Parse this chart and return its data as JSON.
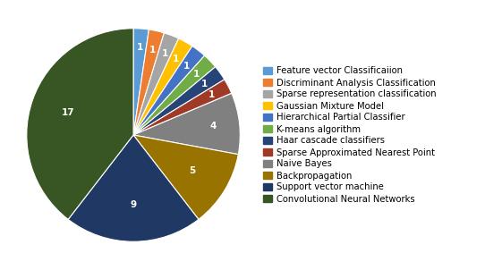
{
  "labels": [
    "Feature vector Classificaiion",
    "Discriminant Analysis Classification",
    "Sparse representation classification",
    "Gaussian Mixture Model",
    "Hierarchical Partial Classifier",
    "K-means algorithm",
    "Haar cascade classifiers",
    "Sparse Approximated Nearest Point",
    "Naive Bayes",
    "Backpropagation",
    "Support vector machine",
    "Convolutional Neural Networks"
  ],
  "values": [
    1,
    1,
    1,
    1,
    1,
    1,
    1,
    1,
    4,
    5,
    9,
    17
  ],
  "colors": [
    "#5B9BD5",
    "#ED7D31",
    "#A5A5A5",
    "#FFC000",
    "#4472C4",
    "#70AD47",
    "#264478",
    "#9E3A26",
    "#808080",
    "#997300",
    "#203864",
    "#375623"
  ],
  "label_fontsize": 7.5,
  "legend_fontsize": 7.2,
  "figsize": [
    5.42,
    3.02
  ],
  "dpi": 100
}
